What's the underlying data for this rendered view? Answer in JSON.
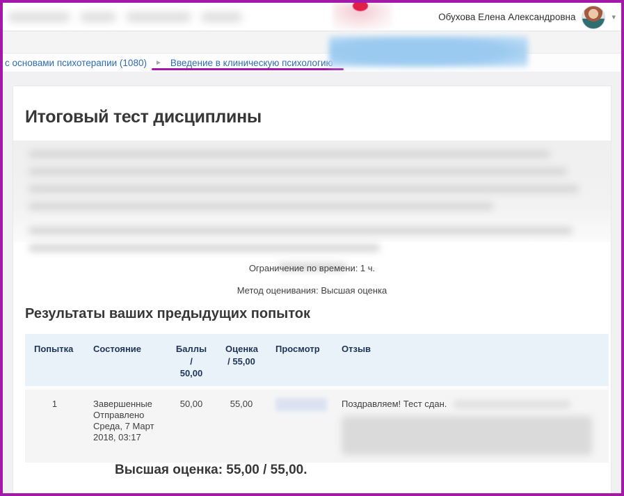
{
  "colors": {
    "frame": "#a318a8",
    "link": "#2e6db0",
    "table_header_bg": "#e9f1f9",
    "table_header_text": "#1e3556",
    "row_bg": "#f5f5f6"
  },
  "topbar": {
    "user_name": "Обухова Елена Александровна",
    "caret": "▾"
  },
  "breadcrumb": {
    "course_link": "с основами психотерапии (1080)",
    "separator": "►",
    "current_link": "Введение в клиническую психологию"
  },
  "quiz": {
    "title": "Итоговый тест дисциплины",
    "time_limit": "Ограничение по времени: 1 ч.",
    "grading_method": "Метод оценивания: Высшая оценка",
    "results_heading": "Результаты ваших предыдущих попыток",
    "final_grade": "Высшая оценка: 55,00 / 55,00."
  },
  "attempts_table": {
    "headers": {
      "attempt": "Попытка",
      "state": "Состояние",
      "points": "Баллы\n/\n50,00",
      "grade": "Оценка\n/ 55,00",
      "review": "Просмотр",
      "feedback": "Отзыв"
    },
    "rows": [
      {
        "attempt": "1",
        "state": "Завершенные\nОтправлено Среда, 7 Март 2018, 03:17",
        "points": "50,00",
        "grade": "55,00",
        "feedback": "Поздравляем! Тест сдан."
      }
    ]
  }
}
